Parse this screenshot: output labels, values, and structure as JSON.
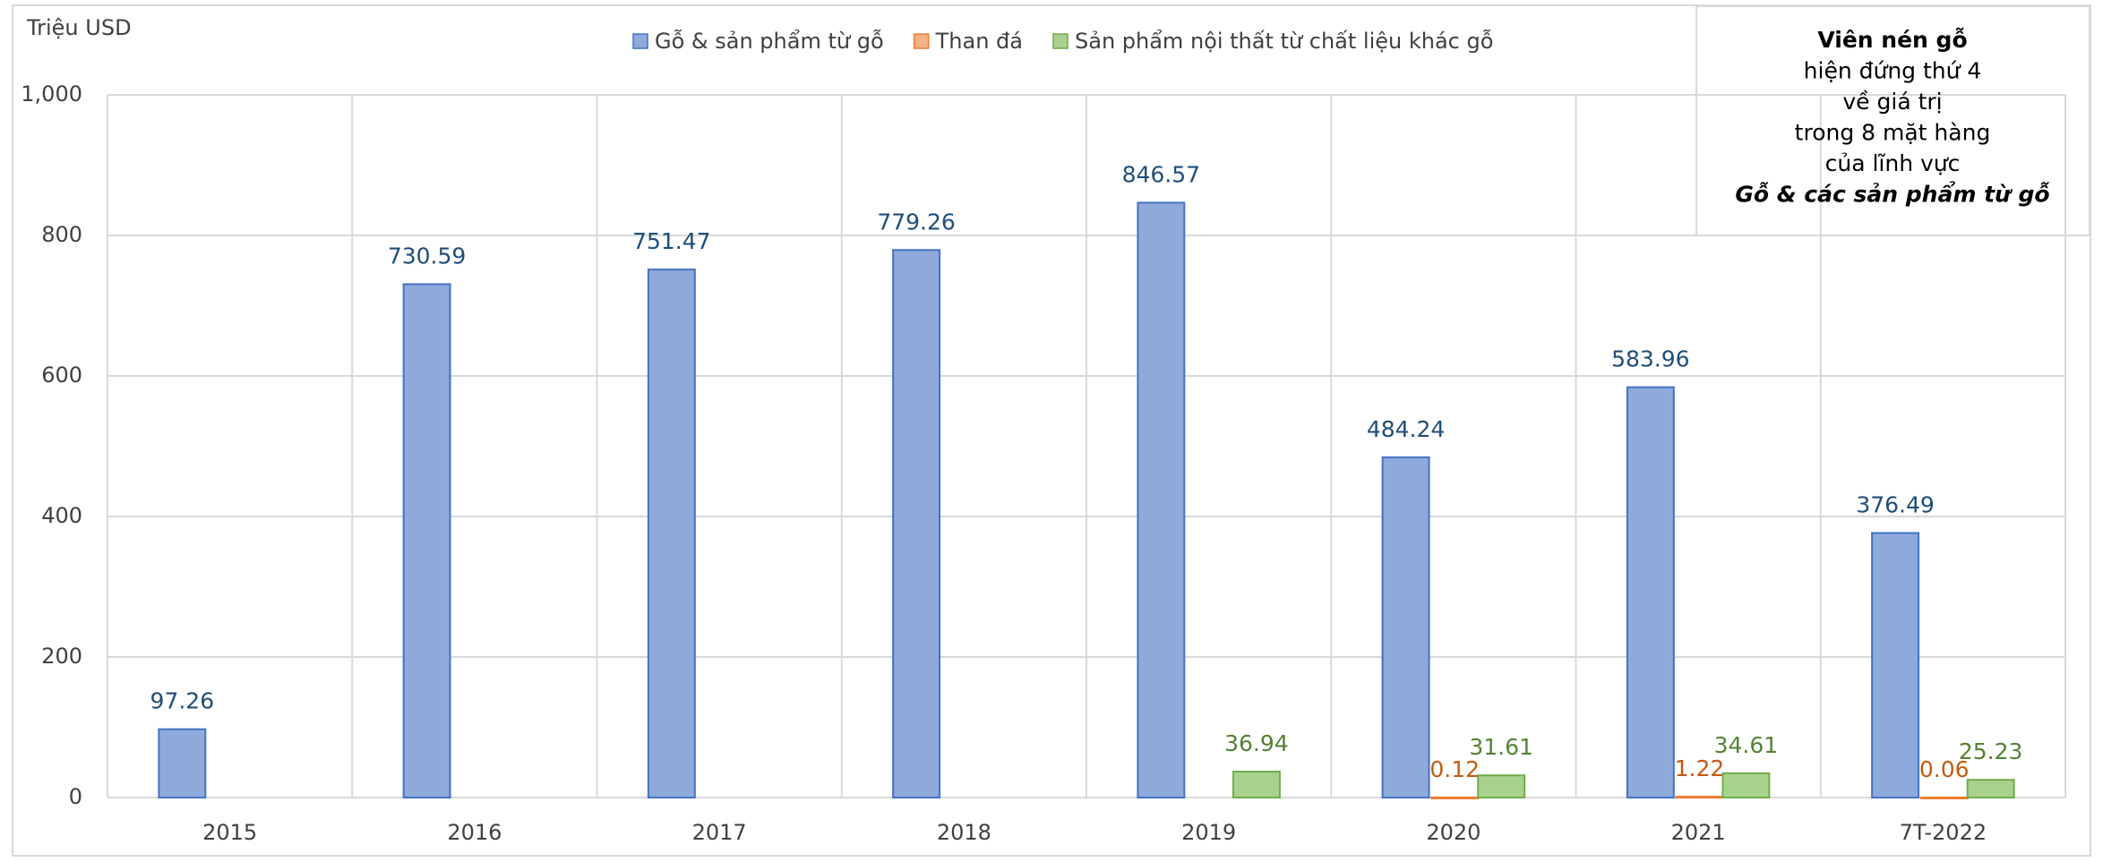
{
  "chart_data": {
    "type": "bar",
    "y_label": "Triệu USD",
    "categories": [
      "2015",
      "2016",
      "2017",
      "2018",
      "2019",
      "2020",
      "2021",
      "7T-2022"
    ],
    "series": [
      {
        "name": "Gỗ & sản phẩm từ gỗ",
        "color": "#8eaadb",
        "values": [
          97.26,
          730.59,
          751.47,
          779.26,
          846.57,
          484.24,
          583.96,
          376.49
        ]
      },
      {
        "name": "Than đá",
        "color": "#f4b183",
        "values": [
          null,
          null,
          null,
          null,
          null,
          0.12,
          1.22,
          0.06
        ]
      },
      {
        "name": "Sản phẩm nội thất từ chất liệu khác gỗ",
        "color": "#a9d18e",
        "values": [
          null,
          null,
          null,
          null,
          36.94,
          31.61,
          34.61,
          25.23
        ]
      }
    ],
    "ylim": [
      0,
      1000
    ],
    "yticks": [
      0,
      200,
      400,
      600,
      800,
      {
        "value": 1000,
        "label": "1,000"
      }
    ],
    "grid": true,
    "legend": "top",
    "annotation": [
      "Viên nén gỗ",
      "hiện đứng thứ 4",
      "về giá trị",
      "trong 8 mặt hàng",
      "của lĩnh vực",
      "Gỗ & các sản phẩm từ gỗ"
    ]
  }
}
